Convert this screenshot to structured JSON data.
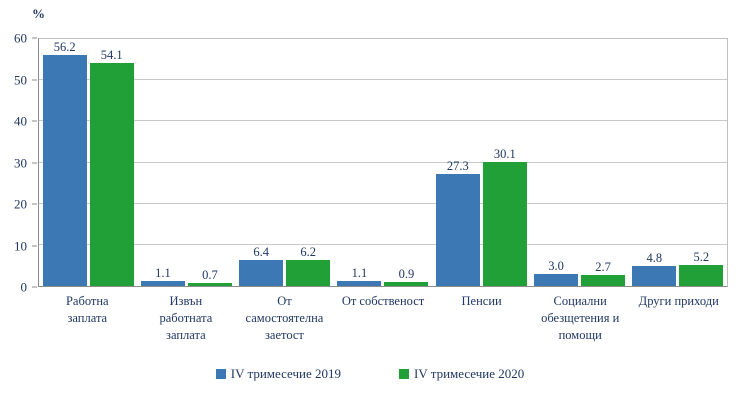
{
  "chart_data": {
    "type": "bar",
    "title": "",
    "xlabel": "",
    "ylabel": "%",
    "ylim": [
      0,
      60
    ],
    "yticks": [
      0,
      10,
      20,
      30,
      40,
      50,
      60
    ],
    "grid": true,
    "legend_position": "bottom",
    "value_labels": true,
    "categories": [
      "Работна\nзаплата",
      "Извън\nработната\nзаплата",
      "От\nсамостоятелна\nзаетост",
      "От собственост",
      "Пенсии",
      "Социални\nобезщетения и\nпомощи",
      "Други приходи"
    ],
    "series": [
      {
        "name": "IV  тримесечие 2019",
        "color": "#3C78B4",
        "values": [
          56.2,
          1.1,
          6.4,
          1.1,
          27.3,
          3.0,
          4.8
        ]
      },
      {
        "name": "IV  тримесечие 2020",
        "color": "#21A038",
        "values": [
          54.1,
          0.7,
          6.2,
          0.9,
          30.1,
          2.7,
          5.2
        ]
      }
    ],
    "text_color": "#1F3864",
    "gridline_color": "#c9c9c9"
  }
}
